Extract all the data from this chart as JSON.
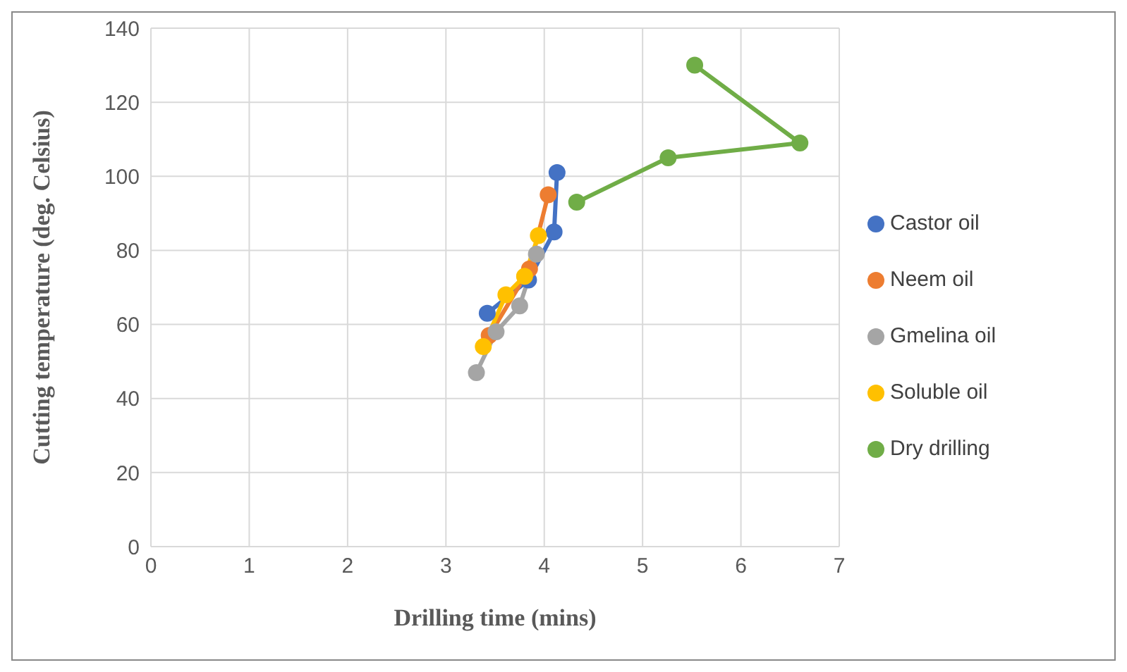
{
  "chart_data": {
    "type": "line",
    "xlabel": "Drilling  time (mins)",
    "ylabel": "Cutting temperature (deg. Celsius)",
    "xlim": [
      0,
      7
    ],
    "xticks": [
      0,
      1,
      2,
      3,
      4,
      5,
      6,
      7
    ],
    "ylim": [
      0,
      140
    ],
    "yticks": [
      0,
      20,
      40,
      60,
      80,
      100,
      120,
      140
    ],
    "grid": true,
    "legend": "right",
    "marker": "circle",
    "line_style": "solid",
    "series": [
      {
        "name": "Castor oil",
        "color": "#4472c4",
        "x": [
          3.42,
          3.84,
          4.1,
          4.13
        ],
        "values": [
          63,
          72,
          85,
          101
        ]
      },
      {
        "name": "Neem oil",
        "color": "#ed7d31",
        "x": [
          3.44,
          3.85,
          4.04
        ],
        "values": [
          57,
          75,
          95
        ]
      },
      {
        "name": "Gmelina oil",
        "color": "#a5a5a5",
        "x": [
          3.31,
          3.51,
          3.75,
          3.92
        ],
        "values": [
          47,
          58,
          65,
          79
        ]
      },
      {
        "name": "Soluble oil",
        "color": "#ffc000",
        "x": [
          3.38,
          3.61,
          3.8,
          3.94
        ],
        "values": [
          54,
          68,
          73,
          84
        ]
      },
      {
        "name": "Dry drilling",
        "color": "#70ad47",
        "x": [
          4.33,
          5.26,
          6.6,
          5.53
        ],
        "values": [
          93,
          105,
          109,
          130
        ]
      }
    ]
  }
}
